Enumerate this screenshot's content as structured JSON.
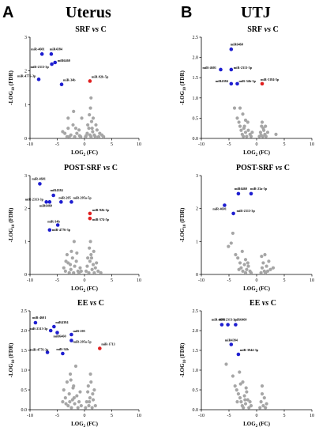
{
  "panel_letters": [
    "A",
    "B"
  ],
  "column_titles": [
    "Uterus",
    "UTJ"
  ],
  "colors": {
    "grey": "#a6a6a6",
    "blue": "#1f1fd0",
    "red": "#e01f1f"
  },
  "chart_data": [
    {
      "type": "scatter",
      "title": "SRF vs C",
      "title_parts": [
        "SRF",
        "vs",
        "C"
      ],
      "xlabel_main": "LOG",
      "xlabel_sub": "2",
      "xlabel_tail": " (FC)",
      "ylabel_main": "-LOG",
      "ylabel_sub": "10",
      "ylabel_tail": " (FDR)",
      "xlim": [
        -10,
        10
      ],
      "ylim": [
        0,
        3
      ],
      "xticks": [
        -10,
        -5,
        0,
        5,
        10
      ],
      "yticks": [
        0,
        1,
        2,
        3
      ],
      "grid": false,
      "labeled_points": [
        {
          "name": "miR-4601",
          "x": -7.8,
          "y": 2.5,
          "color": "blue"
        },
        {
          "name": "miR4384",
          "x": -6.1,
          "y": 2.5,
          "color": "blue"
        },
        {
          "name": "miR6460",
          "x": -5.4,
          "y": 2.25,
          "color": "blue"
        },
        {
          "name": "miR-2313-3p",
          "x": -6.0,
          "y": 2.2,
          "color": "blue"
        },
        {
          "name": "miR-4776-3p",
          "x": -8.4,
          "y": 1.75,
          "color": "blue"
        },
        {
          "name": "miR-34b",
          "x": -4.2,
          "y": 1.6,
          "color": "blue"
        },
        {
          "name": "miR-92b-5p",
          "x": 1.0,
          "y": 1.7,
          "color": "red"
        }
      ],
      "grey_points": [
        [
          -4,
          0.2
        ],
        [
          -3.6,
          0.15
        ],
        [
          -3,
          0.3
        ],
        [
          -3,
          0.6
        ],
        [
          -2.8,
          0.05
        ],
        [
          -2.5,
          0.1
        ],
        [
          -2.1,
          0.4
        ],
        [
          -1.8,
          0.05
        ],
        [
          -1.4,
          0.15
        ],
        [
          -1,
          0.25
        ],
        [
          -0.7,
          0.05
        ],
        [
          -0.5,
          0.6
        ],
        [
          -2,
          0.8
        ],
        [
          0.2,
          0.05
        ],
        [
          0.5,
          0.15
        ],
        [
          0.8,
          0.3
        ],
        [
          1,
          0.1
        ],
        [
          1.2,
          0.05
        ],
        [
          1.3,
          0.5
        ],
        [
          1.5,
          0.2
        ],
        [
          1.8,
          0.1
        ],
        [
          2,
          0.05
        ],
        [
          2.3,
          0.25
        ],
        [
          2.6,
          0.05
        ],
        [
          3.2,
          0.1
        ],
        [
          3.5,
          0.05
        ],
        [
          1.1,
          0.9
        ],
        [
          1.2,
          1.2
        ],
        [
          0.9,
          0.7
        ],
        [
          1.6,
          0.6
        ],
        [
          2.1,
          0.4
        ],
        [
          -3.2,
          0.05
        ],
        [
          -0.9,
          0.08
        ],
        [
          0.6,
          0.4
        ],
        [
          1.4,
          0.3
        ],
        [
          -1.6,
          0.3
        ],
        [
          2.8,
          0.15
        ],
        [
          0.3,
          0.08
        ]
      ]
    },
    {
      "type": "scatter",
      "title": "SRF vs C",
      "title_parts": [
        "SRF",
        "vs",
        "C"
      ],
      "xlabel_main": "LOG",
      "xlabel_sub": "2",
      "xlabel_tail": " (FC)",
      "ylabel_main": "-LOG",
      "ylabel_sub": "10",
      "ylabel_tail": " (FDR)",
      "xlim": [
        -10,
        10
      ],
      "ylim": [
        0,
        2.5
      ],
      "xticks": [
        -10,
        -5,
        0,
        5,
        10
      ],
      "yticks": [
        0.0,
        0.5,
        1.0,
        1.5,
        2.0,
        2.5
      ],
      "ytick_labels": [
        "0.0",
        "0.5",
        "1.0",
        "1.5",
        "2.0",
        "2.5"
      ],
      "grid": false,
      "labeled_points": [
        {
          "name": "miR6460",
          "x": -4.6,
          "y": 2.2,
          "color": "blue"
        },
        {
          "name": "miR-4601",
          "x": -6.5,
          "y": 1.7,
          "color": "blue"
        },
        {
          "name": "miR-2313-3p",
          "x": -4.6,
          "y": 1.7,
          "color": "blue"
        },
        {
          "name": "miR4384",
          "x": -4.6,
          "y": 1.35,
          "color": "blue"
        },
        {
          "name": "miR-34b-3p",
          "x": -3.5,
          "y": 1.35,
          "color": "blue"
        },
        {
          "name": "miR-3184-5p",
          "x": 1.0,
          "y": 1.35,
          "color": "red"
        }
      ],
      "grey_points": [
        [
          -4,
          0.75
        ],
        [
          -3.5,
          0.5
        ],
        [
          -3.2,
          0.4
        ],
        [
          -3,
          0.3
        ],
        [
          -2.8,
          0.2
        ],
        [
          -2.6,
          0.1
        ],
        [
          -2.4,
          0.05
        ],
        [
          -2.2,
          0.3
        ],
        [
          -2,
          0.15
        ],
        [
          -1.8,
          0.05
        ],
        [
          -1.5,
          0.2
        ],
        [
          -1.2,
          0.1
        ],
        [
          -1,
          0.05
        ],
        [
          -0.8,
          0.15
        ],
        [
          -2.5,
          0.6
        ],
        [
          -3,
          0.75
        ],
        [
          -2,
          0.45
        ],
        [
          0.5,
          0.05
        ],
        [
          0.7,
          0.15
        ],
        [
          0.9,
          0.3
        ],
        [
          1.1,
          0.05
        ],
        [
          1.3,
          0.2
        ],
        [
          1.5,
          0.1
        ],
        [
          1.7,
          0.05
        ],
        [
          2,
          0.15
        ],
        [
          1,
          0.4
        ],
        [
          1.2,
          0.25
        ],
        [
          3.5,
          0.1
        ],
        [
          -1.6,
          0.4
        ],
        [
          -2.3,
          0.25
        ],
        [
          0.8,
          0.08
        ],
        [
          1.6,
          0.3
        ]
      ]
    },
    {
      "type": "scatter",
      "title": "POST-SRF vs C",
      "title_parts": [
        "POST-SRF",
        "vs",
        "C"
      ],
      "xlabel_main": "LOG",
      "xlabel_sub": "2",
      "xlabel_tail": " (FC)",
      "ylabel_main": "-LOG",
      "ylabel_sub": "10",
      "ylabel_tail": " (FDR)",
      "xlim": [
        -10,
        10
      ],
      "ylim": [
        0,
        3
      ],
      "xticks": [
        -10,
        -5,
        0,
        5,
        10
      ],
      "yticks": [
        0,
        1,
        2,
        3
      ],
      "grid": false,
      "labeled_points": [
        {
          "name": "miR-4601",
          "x": -8.2,
          "y": 2.75,
          "color": "blue"
        },
        {
          "name": "miR4384",
          "x": -5.7,
          "y": 2.4,
          "color": "blue"
        },
        {
          "name": "miR-2313-3p",
          "x": -7.0,
          "y": 2.2,
          "color": "blue"
        },
        {
          "name": "miR-205",
          "x": -4.3,
          "y": 2.2,
          "color": "blue"
        },
        {
          "name": "miR-205a-5p",
          "x": -2.4,
          "y": 2.2,
          "color": "blue"
        },
        {
          "name": "miR6460",
          "x": -6.4,
          "y": 2.2,
          "color": "blue"
        },
        {
          "name": "miR-92b-5p",
          "x": 1.0,
          "y": 1.85,
          "color": "red"
        },
        {
          "name": "miR-574-5p",
          "x": 1.0,
          "y": 1.7,
          "color": "red"
        },
        {
          "name": "miR-34b",
          "x": -4.9,
          "y": 1.5,
          "color": "blue"
        },
        {
          "name": "miR-4776-3p",
          "x": -6.4,
          "y": 1.35,
          "color": "blue"
        }
      ],
      "grey_points": [
        [
          -3.8,
          0.2
        ],
        [
          -3.5,
          0.1
        ],
        [
          -3,
          0.35
        ],
        [
          -2.8,
          0.05
        ],
        [
          -2.5,
          0.15
        ],
        [
          -2.2,
          0.5
        ],
        [
          -2,
          0.05
        ],
        [
          -1.8,
          0.25
        ],
        [
          -1.5,
          0.4
        ],
        [
          -1.2,
          0.1
        ],
        [
          -1,
          0.05
        ],
        [
          -0.8,
          0.2
        ],
        [
          -2.4,
          0.7
        ],
        [
          -1.9,
          1.0
        ],
        [
          -3.2,
          0.6
        ],
        [
          0.3,
          0.1
        ],
        [
          0.5,
          0.25
        ],
        [
          0.8,
          0.05
        ],
        [
          1,
          0.4
        ],
        [
          1.2,
          0.6
        ],
        [
          1.4,
          0.15
        ],
        [
          1.6,
          0.3
        ],
        [
          1.8,
          0.05
        ],
        [
          2,
          0.2
        ],
        [
          2.5,
          0.1
        ],
        [
          3,
          0.05
        ],
        [
          0.9,
          0.8
        ],
        [
          1.1,
          1.0
        ],
        [
          1.3,
          0.5
        ],
        [
          1.7,
          0.7
        ],
        [
          -2.6,
          0.3
        ],
        [
          -1.4,
          0.65
        ],
        [
          0.6,
          0.5
        ],
        [
          2.2,
          0.35
        ],
        [
          -0.6,
          0.1
        ],
        [
          -3.4,
          0.4
        ]
      ]
    },
    {
      "type": "scatter",
      "title": "POST-SRF vs C",
      "title_parts": [
        "POST-SRF",
        "vs",
        "C"
      ],
      "xlabel_main": "LOG",
      "xlabel_sub": "2",
      "xlabel_tail": " (FC)",
      "ylabel_main": "-LOG",
      "ylabel_sub": "10",
      "ylabel_tail": " (FDR)",
      "xlim": [
        -10,
        10
      ],
      "ylim": [
        0,
        3
      ],
      "xticks": [
        -10,
        -5,
        0,
        5,
        10
      ],
      "yticks": [
        0,
        1,
        2,
        3
      ],
      "grid": false,
      "labeled_points": [
        {
          "name": "miR6460",
          "x": -3.3,
          "y": 2.45,
          "color": "blue"
        },
        {
          "name": "miR-23a-5p",
          "x": -1.0,
          "y": 2.45,
          "color": "blue"
        },
        {
          "name": "miR-4601",
          "x": -5.8,
          "y": 2.1,
          "color": "blue"
        },
        {
          "name": "miR-2313-3p",
          "x": -4.2,
          "y": 1.85,
          "color": "blue"
        }
      ],
      "grey_points": [
        [
          -4.3,
          1.25
        ],
        [
          -4.6,
          0.95
        ],
        [
          -5.1,
          0.85
        ],
        [
          -3.8,
          0.6
        ],
        [
          -3.4,
          0.5
        ],
        [
          -3,
          0.35
        ],
        [
          -2.8,
          0.2
        ],
        [
          -2.5,
          0.1
        ],
        [
          -2.2,
          0.3
        ],
        [
          -2,
          0.05
        ],
        [
          -1.8,
          0.15
        ],
        [
          -1.5,
          0.25
        ],
        [
          -1.2,
          0.1
        ],
        [
          -1,
          0.05
        ],
        [
          -2.6,
          0.7
        ],
        [
          -2,
          0.45
        ],
        [
          0.8,
          0.05
        ],
        [
          1,
          0.2
        ],
        [
          1.2,
          0.35
        ],
        [
          1.4,
          0.1
        ],
        [
          1.6,
          0.05
        ],
        [
          1.8,
          0.25
        ],
        [
          2,
          0.1
        ],
        [
          2.2,
          0.4
        ],
        [
          2.5,
          0.15
        ],
        [
          0.9,
          0.55
        ],
        [
          1.5,
          0.6
        ],
        [
          3,
          0.2
        ],
        [
          -3.2,
          0.15
        ],
        [
          -1.6,
          0.35
        ]
      ]
    },
    {
      "type": "scatter",
      "title": "EE vs C",
      "title_parts": [
        "EE",
        "vs",
        "C"
      ],
      "xlabel_main": "LOG",
      "xlabel_sub": "2",
      "xlabel_tail": " (FC)",
      "ylabel_main": "-LOG",
      "ylabel_sub": "10",
      "ylabel_tail": " (FDR)",
      "xlim": [
        -10,
        10
      ],
      "ylim": [
        0,
        2.5
      ],
      "xticks": [
        -10,
        -5,
        0,
        5,
        10
      ],
      "yticks": [
        0.0,
        0.5,
        1.0,
        1.5,
        2.0,
        2.5
      ],
      "ytick_labels": [
        "0.0",
        "0.5",
        "1.0",
        "1.5",
        "2.0",
        "2.5"
      ],
      "grid": false,
      "labeled_points": [
        {
          "name": "miR-4601",
          "x": -9.0,
          "y": 2.2,
          "color": "blue"
        },
        {
          "name": "miR4384",
          "x": -5.6,
          "y": 2.1,
          "color": "blue"
        },
        {
          "name": "miR-2313-3p",
          "x": -6.2,
          "y": 2.0,
          "color": "blue"
        },
        {
          "name": "miR6460",
          "x": -5.0,
          "y": 1.95,
          "color": "blue"
        },
        {
          "name": "miR-205",
          "x": -2.4,
          "y": 1.9,
          "color": "blue"
        },
        {
          "name": "miR-205a-5p",
          "x": -2.4,
          "y": 1.75,
          "color": "blue"
        },
        {
          "name": "miR-4776-3p",
          "x": -6.8,
          "y": 1.45,
          "color": "blue"
        },
        {
          "name": "miR-34b",
          "x": -4.0,
          "y": 1.42,
          "color": "blue"
        },
        {
          "name": "miR-1713",
          "x": 2.8,
          "y": 1.55,
          "color": "red"
        }
      ],
      "grey_points": [
        [
          -4,
          0.2
        ],
        [
          -3.8,
          0.5
        ],
        [
          -3.5,
          0.3
        ],
        [
          -3.2,
          0.7
        ],
        [
          -3,
          0.1
        ],
        [
          -2.8,
          0.4
        ],
        [
          -2.6,
          0.9
        ],
        [
          -2.4,
          0.05
        ],
        [
          -2.2,
          0.25
        ],
        [
          -2,
          0.6
        ],
        [
          -1.8,
          0.15
        ],
        [
          -1.6,
          1.1
        ],
        [
          -1.4,
          0.35
        ],
        [
          -1.2,
          0.05
        ],
        [
          -1,
          0.2
        ],
        [
          -0.8,
          0.45
        ],
        [
          -2.5,
          0.75
        ],
        [
          -2.1,
          0.55
        ],
        [
          0.2,
          0.05
        ],
        [
          0.4,
          0.2
        ],
        [
          0.6,
          0.45
        ],
        [
          0.8,
          0.1
        ],
        [
          1,
          0.3
        ],
        [
          1.2,
          0.7
        ],
        [
          1.4,
          0.05
        ],
        [
          1.6,
          0.25
        ],
        [
          1.8,
          0.5
        ],
        [
          2,
          0.1
        ],
        [
          1.1,
          0.9
        ],
        [
          0.7,
          0.6
        ],
        [
          1.5,
          0.4
        ],
        [
          -3.4,
          0.15
        ],
        [
          -1.9,
          0.3
        ],
        [
          -2.7,
          0.2
        ],
        [
          0.9,
          0.2
        ],
        [
          -0.6,
          0.1
        ]
      ]
    },
    {
      "type": "scatter",
      "title": "EE vs C",
      "title_parts": [
        "EE",
        "vs",
        "C"
      ],
      "xlabel_main": "LOG",
      "xlabel_sub": "2",
      "xlabel_tail": " (FC)",
      "ylabel_main": "-LOG",
      "ylabel_sub": "10",
      "ylabel_tail": " (FDR)",
      "xlim": [
        -10,
        10
      ],
      "ylim": [
        0,
        2.5
      ],
      "xticks": [
        -10,
        -5,
        0,
        5,
        10
      ],
      "yticks": [
        0.0,
        0.5,
        1.0,
        1.5,
        2.0,
        2.5
      ],
      "ytick_labels": [
        "0.0",
        "0.5",
        "1.0",
        "1.5",
        "2.0",
        "2.5"
      ],
      "grid": false,
      "labeled_points": [
        {
          "name": "miR-4601",
          "x": -6.3,
          "y": 2.15,
          "color": "blue"
        },
        {
          "name": "miR-2313-3p",
          "x": -5.2,
          "y": 2.15,
          "color": "blue"
        },
        {
          "name": "miR6460",
          "x": -3.8,
          "y": 2.15,
          "color": "blue"
        },
        {
          "name": "miR4384",
          "x": -4.6,
          "y": 1.65,
          "color": "blue"
        },
        {
          "name": "miR-3944-3p",
          "x": -3.3,
          "y": 1.4,
          "color": "blue"
        }
      ],
      "grey_points": [
        [
          -5.5,
          1.15
        ],
        [
          -4.3,
          0.85
        ],
        [
          -3.9,
          0.6
        ],
        [
          -3.6,
          0.5
        ],
        [
          -3.3,
          0.4
        ],
        [
          -3,
          0.3
        ],
        [
          -2.8,
          0.2
        ],
        [
          -2.6,
          0.1
        ],
        [
          -2.4,
          0.05
        ],
        [
          -2.2,
          0.35
        ],
        [
          -2,
          0.15
        ],
        [
          -1.8,
          0.45
        ],
        [
          -1.6,
          0.25
        ],
        [
          -1.4,
          0.05
        ],
        [
          -1.2,
          0.2
        ],
        [
          -1,
          0.1
        ],
        [
          -2.5,
          0.7
        ],
        [
          -3.1,
          0.95
        ],
        [
          -2.9,
          0.65
        ],
        [
          0.6,
          0.05
        ],
        [
          0.8,
          0.2
        ],
        [
          1,
          0.4
        ],
        [
          1.2,
          0.1
        ],
        [
          1.4,
          0.3
        ],
        [
          1.6,
          0.05
        ],
        [
          1.8,
          0.15
        ],
        [
          1,
          0.6
        ],
        [
          -3.5,
          0.2
        ],
        [
          -1.9,
          0.55
        ],
        [
          -2.1,
          0.25
        ]
      ]
    }
  ]
}
